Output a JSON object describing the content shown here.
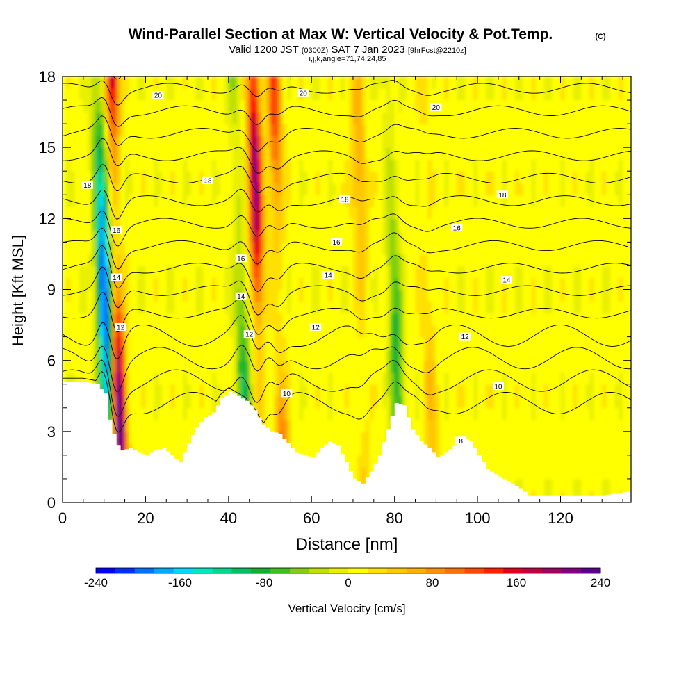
{
  "chart_data": {
    "type": "heatmap",
    "title": "Wind-Parallel Section at Max W: Vertical Velocity & Pot.Temp.",
    "title_tag": "(C)",
    "subtitle": {
      "prefix": "Valid 1200 JST",
      "utc": "(0300Z)",
      "date": "SAT 7 Jan 2023",
      "fcst": "[9hrFcst@2210z]"
    },
    "subtitle2": "i,j,k,angle=71,74,24,85",
    "xlabel": "Distance [nm]",
    "ylabel": "Height [Kft MSL]",
    "xlim": [
      0,
      137
    ],
    "ylim": [
      0,
      18
    ],
    "x_ticks": [
      0,
      20,
      40,
      60,
      80,
      100,
      120
    ],
    "y_ticks": [
      0,
      3,
      6,
      9,
      12,
      15,
      18
    ],
    "colorbar": {
      "label": "Vertical Velocity [cm/s]",
      "min": -240,
      "max": 240,
      "ticks": [
        "-240",
        "-160",
        "-80",
        "0",
        "80",
        "160",
        "240"
      ],
      "colors": [
        "#0000ff",
        "#0030ff",
        "#0070ff",
        "#00a8ff",
        "#00d8ff",
        "#00e8c0",
        "#00d890",
        "#00c060",
        "#10b030",
        "#40c020",
        "#80d010",
        "#c0e000",
        "#e8f000",
        "#ffff00",
        "#ffe000",
        "#ffc800",
        "#ffb000",
        "#ff9000",
        "#ff7000",
        "#ff4800",
        "#ff2000",
        "#e00020",
        "#c00040",
        "#a00060",
        "#800080",
        "#5a0090"
      ]
    },
    "updraft_axes_nm": [
      {
        "x": 13,
        "peak_cms": 240
      },
      {
        "x": 47,
        "peak_cms": 200
      },
      {
        "x": 52,
        "peak_cms": 120
      },
      {
        "x": 72,
        "peak_cms": 60
      },
      {
        "x": 88,
        "peak_cms": 40
      }
    ],
    "downdraft_axes_nm": [
      {
        "x": 10,
        "peak_cms": -220
      },
      {
        "x": 43,
        "peak_cms": -100
      },
      {
        "x": 80,
        "peak_cms": -90
      }
    ],
    "terrain_kft": {
      "x": [
        0,
        5,
        8,
        10,
        11,
        12,
        13,
        14,
        16,
        18,
        20,
        22,
        24,
        26,
        28,
        30,
        32,
        34,
        36,
        38,
        40,
        42,
        44,
        46,
        48,
        50,
        52,
        54,
        56,
        58,
        60,
        62,
        64,
        66,
        68,
        70,
        72,
        74,
        76,
        78,
        80,
        82,
        84,
        86,
        88,
        90,
        92,
        94,
        96,
        98,
        100,
        102,
        104,
        106,
        108,
        110,
        112,
        130,
        134,
        137
      ],
      "y": [
        5.1,
        5.1,
        5.0,
        4.6,
        3.5,
        2.9,
        2.4,
        2.2,
        2.3,
        2.1,
        2.0,
        2.2,
        2.3,
        2.0,
        1.7,
        2.5,
        3.2,
        3.6,
        3.8,
        4.4,
        4.7,
        4.5,
        4.3,
        3.9,
        3.3,
        3.0,
        2.9,
        2.5,
        2.1,
        2.0,
        1.9,
        2.3,
        2.6,
        2.4,
        1.7,
        1.0,
        0.8,
        1.3,
        2.0,
        3.1,
        4.2,
        4.1,
        3.1,
        2.6,
        2.3,
        1.9,
        2.1,
        2.4,
        2.8,
        2.6,
        2.0,
        1.4,
        1.2,
        1.0,
        0.8,
        0.6,
        0.3,
        0.3,
        0.4,
        0.5
      ]
    },
    "isentropes": {
      "labeled_levels": [
        "8",
        "10",
        "12",
        "14",
        "16",
        "18",
        "20"
      ],
      "count": 16
    }
  }
}
